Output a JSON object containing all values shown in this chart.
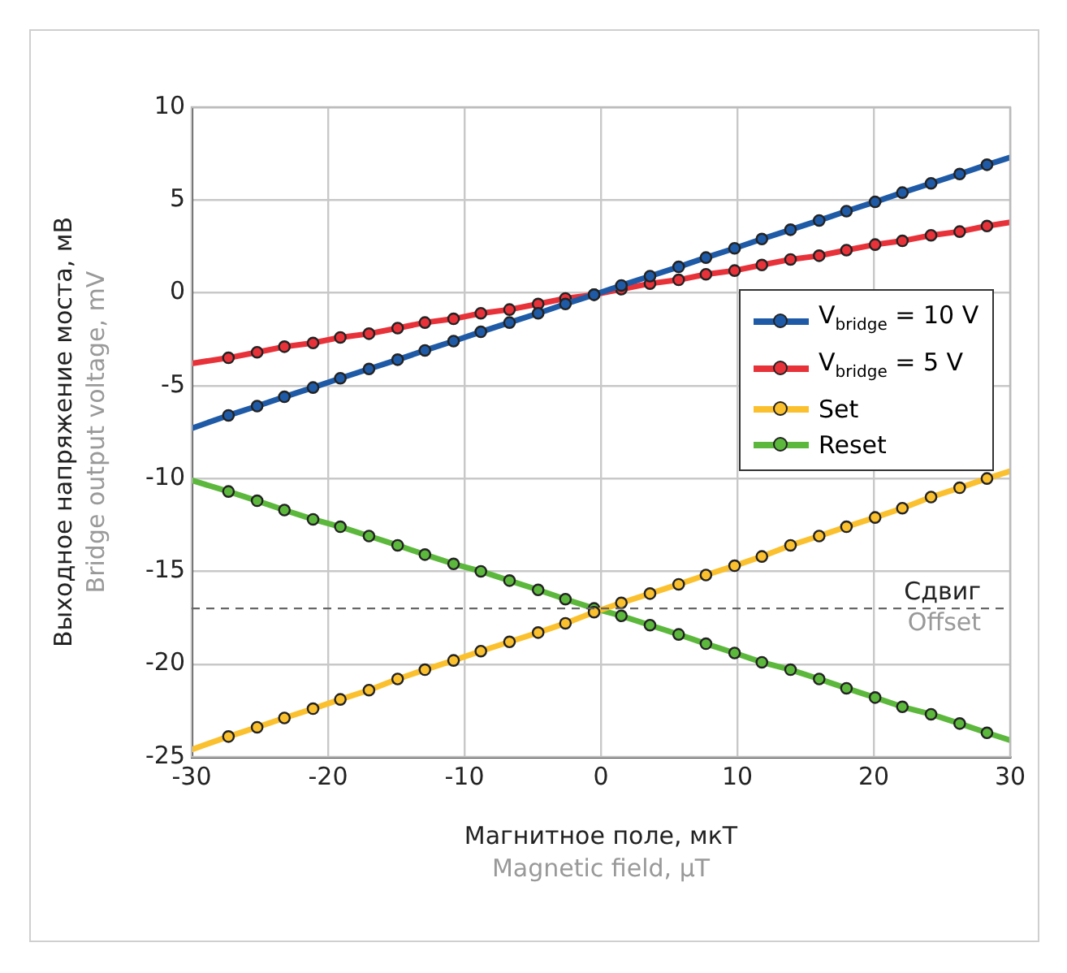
{
  "chart_data": {
    "type": "line",
    "xlabel": "Магнитное поле, мкТ\nMagnetic field, μT",
    "ylabel": "Выходное напряжение моста, мВ\nBridge output voltage, mV",
    "x": [
      -30,
      -27.3,
      -25.2,
      -23.2,
      -21.1,
      -19.1,
      -17.0,
      -14.9,
      -12.9,
      -10.8,
      -8.8,
      -6.7,
      -4.6,
      -2.6,
      -0.5,
      1.5,
      3.6,
      5.7,
      7.7,
      9.8,
      11.8,
      13.9,
      16.0,
      18.0,
      20.1,
      22.1,
      24.2,
      26.3,
      28.3,
      30
    ],
    "series": [
      {
        "name": "V$_{bridge}$ = 10 V",
        "color": "#1f5aa6",
        "values": [
          -7.3,
          -6.6,
          -6.1,
          -5.6,
          -5.1,
          -4.6,
          -4.1,
          -3.6,
          -3.1,
          -2.6,
          -2.1,
          -1.6,
          -1.1,
          -0.6,
          -0.1,
          0.4,
          0.9,
          1.4,
          1.9,
          2.4,
          2.9,
          3.4,
          3.9,
          4.4,
          4.9,
          5.4,
          5.9,
          6.4,
          6.9,
          7.3
        ]
      },
      {
        "name": "V$_{bridge}$ = 5 V",
        "color": "#e8323a",
        "values": [
          -3.8,
          -3.5,
          -3.2,
          -2.9,
          -2.7,
          -2.4,
          -2.2,
          -1.9,
          -1.6,
          -1.4,
          -1.1,
          -0.9,
          -0.6,
          -0.3,
          -0.1,
          0.2,
          0.5,
          0.7,
          1.0,
          1.2,
          1.5,
          1.8,
          2.0,
          2.3,
          2.6,
          2.8,
          3.1,
          3.3,
          3.6,
          3.8
        ]
      },
      {
        "name": "Set",
        "color": "#fbc02d",
        "values": [
          -24.6,
          -23.9,
          -23.4,
          -22.9,
          -22.4,
          -21.9,
          -21.4,
          -20.8,
          -20.3,
          -19.8,
          -19.3,
          -18.8,
          -18.3,
          -17.8,
          -17.2,
          -16.7,
          -16.2,
          -15.7,
          -15.2,
          -14.7,
          -14.2,
          -13.6,
          -13.1,
          -12.6,
          -12.1,
          -11.6,
          -11.0,
          -10.5,
          -10.0,
          -9.6
        ]
      },
      {
        "name": "Reset",
        "color": "#5cb83c",
        "values": [
          -10.1,
          -10.7,
          -11.2,
          -11.7,
          -12.2,
          -12.6,
          -13.1,
          -13.6,
          -14.1,
          -14.6,
          -15.0,
          -15.5,
          -16.0,
          -16.5,
          -17.0,
          -17.4,
          -17.9,
          -18.4,
          -18.9,
          -19.4,
          -19.9,
          -20.3,
          -20.8,
          -21.3,
          -21.8,
          -22.3,
          -22.7,
          -23.2,
          -23.7,
          -24.1
        ]
      }
    ],
    "xlim": [
      -30,
      30
    ],
    "xticks": [
      -30,
      -20,
      -10,
      0,
      10,
      20,
      30
    ],
    "ylim": [
      -25,
      10
    ],
    "yticks": [
      -25,
      -20,
      -15,
      -10,
      -5,
      0,
      5,
      10
    ],
    "ref_lines": [
      {
        "axis": "y",
        "value": -17,
        "label": "Сдвиг\nOffset",
        "color": "#666666",
        "line_style": "dashed"
      }
    ],
    "grid": true,
    "legend": "right",
    "marker": "circle",
    "line_style": "solid"
  }
}
